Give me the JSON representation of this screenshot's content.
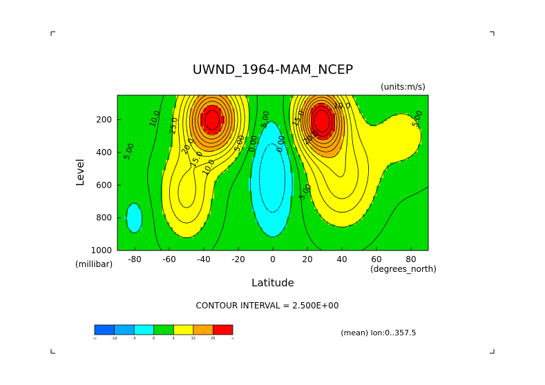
{
  "chart_data": {
    "type": "contour",
    "title": "UWND_1964-MAM_NCEP",
    "units_label": "(units:m/s)",
    "xlabel": "Latitude",
    "ylabel": "Level",
    "x_unit_label": "(degrees_north)",
    "y_unit_label": "(millibar)",
    "xlim": [
      -90,
      90
    ],
    "ylim": [
      1000,
      50
    ],
    "y_inverted": true,
    "x_ticks": [
      "-80",
      "-60",
      "-40",
      "-20",
      "0",
      "20",
      "40",
      "60",
      "80"
    ],
    "x_tick_values": [
      -80,
      -60,
      -40,
      -20,
      0,
      20,
      40,
      60,
      80
    ],
    "y_ticks": [
      "200",
      "400",
      "600",
      "800",
      "1000"
    ],
    "y_tick_values": [
      200,
      400,
      600,
      800,
      1000
    ],
    "contour_interval_text": "CONTOUR INTERVAL = 2.500E+00",
    "mean_text": "(mean) lon:0..357.5",
    "contour_labels": [
      "10.0",
      "20.0",
      "5.00",
      "25.0",
      "15.0",
      "10.0",
      "5.00",
      "0.00",
      "5.00",
      "0.00",
      "10.0",
      "15.0",
      "20.0",
      "5.00",
      "5.00"
    ],
    "colorbar": {
      "tick_labels": [
        "-∞",
        "-10",
        "-5",
        "0",
        "5",
        "15",
        "25",
        "∞"
      ],
      "colors": [
        "#0066ff",
        "#00aaff",
        "#00ffff",
        "#00dd00",
        "#ffff00",
        "#ffa500",
        "#ff0000"
      ]
    },
    "jets": [
      {
        "lat": -35,
        "level": 200,
        "peak": 27.5
      },
      {
        "lat": 28,
        "level": 200,
        "peak": 30
      }
    ]
  }
}
